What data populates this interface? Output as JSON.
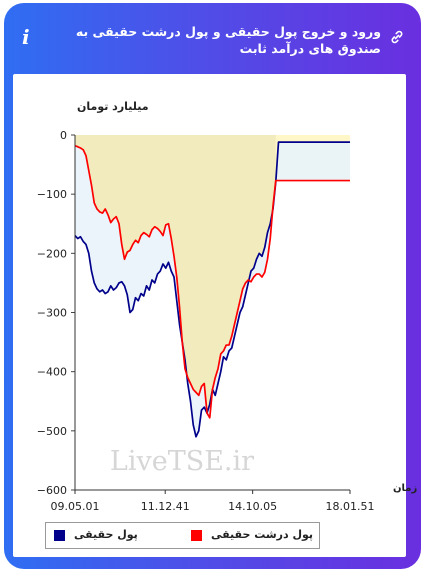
{
  "header": {
    "title": "ورود و خروج پول حقیقی و پول درشت حقیقی به صندوق های درآمد ثابت",
    "link_icon": "link-icon",
    "info_icon": "info-icon",
    "info_glyph": "i"
  },
  "watermark": "LiveTSE.ir",
  "colors": {
    "frame_start": "#2f6ef3",
    "frame_end": "#6a2fe0",
    "real_money": "#00008b",
    "big_real_money": "#ff0000",
    "fill_real": "#e9f3fa",
    "fill_big": "#f2ebbd",
    "fill_big_last": "#fff7c8"
  },
  "chart_data": {
    "type": "line",
    "ylabel": "میلیارد تومان",
    "xlabel": "زمان",
    "ylim": [
      -600,
      0
    ],
    "yticks": [
      0,
      -100,
      -200,
      -300,
      -400,
      -500,
      -600
    ],
    "ytick_labels": [
      "0",
      "−100",
      "−200",
      "−300",
      "−400",
      "−500",
      "−600"
    ],
    "xticks": [
      "09.05.01",
      "11.12.41",
      "14.10.05",
      "18.01.51"
    ],
    "xtick_positions": [
      0,
      0.328,
      0.646,
      1.0
    ],
    "legend": [
      "پول حقیقی",
      "پول درشت حقیقی"
    ],
    "series": [
      {
        "name": "پول حقیقی",
        "color": "#00008b",
        "x": [
          0,
          0.01,
          0.02,
          0.03,
          0.04,
          0.05,
          0.06,
          0.07,
          0.08,
          0.09,
          0.1,
          0.11,
          0.12,
          0.13,
          0.14,
          0.15,
          0.16,
          0.17,
          0.18,
          0.19,
          0.2,
          0.21,
          0.22,
          0.23,
          0.24,
          0.25,
          0.26,
          0.27,
          0.28,
          0.29,
          0.3,
          0.31,
          0.32,
          0.33,
          0.34,
          0.35,
          0.36,
          0.37,
          0.38,
          0.39,
          0.4,
          0.41,
          0.42,
          0.43,
          0.44,
          0.45,
          0.46,
          0.47,
          0.48,
          0.49,
          0.5,
          0.51,
          0.52,
          0.53,
          0.54,
          0.55,
          0.56,
          0.57,
          0.58,
          0.59,
          0.6,
          0.61,
          0.62,
          0.63,
          0.64,
          0.65,
          0.66,
          0.67,
          0.68,
          0.69,
          0.7,
          0.71,
          0.72,
          0.73,
          0.74,
          0.75,
          0.76,
          0.77,
          0.78,
          0.79,
          0.8,
          0.81,
          1.0
        ],
        "values": [
          -170,
          -175,
          -172,
          -180,
          -185,
          -200,
          -230,
          -250,
          -260,
          -265,
          -262,
          -268,
          -265,
          -255,
          -262,
          -258,
          -250,
          -248,
          -255,
          -270,
          -300,
          -295,
          -275,
          -280,
          -268,
          -272,
          -255,
          -262,
          -245,
          -250,
          -235,
          -230,
          -218,
          -225,
          -215,
          -230,
          -240,
          -280,
          -320,
          -350,
          -380,
          -420,
          -450,
          -490,
          -510,
          -500,
          -465,
          -460,
          -470,
          -455,
          -430,
          -440,
          -420,
          -400,
          -375,
          -380,
          -365,
          -360,
          -340,
          -320,
          -300,
          -290,
          -270,
          -250,
          -230,
          -225,
          -210,
          -200,
          -205,
          -190,
          -165,
          -150,
          -125,
          -80,
          -12,
          -12,
          -12,
          -12,
          -12,
          -12,
          -12,
          -12,
          -12
        ]
      },
      {
        "name": "پول درشت حقیقی",
        "color": "#ff0000",
        "x": [
          0,
          0.01,
          0.02,
          0.03,
          0.04,
          0.05,
          0.06,
          0.07,
          0.08,
          0.09,
          0.1,
          0.11,
          0.12,
          0.13,
          0.14,
          0.15,
          0.16,
          0.17,
          0.18,
          0.19,
          0.2,
          0.21,
          0.22,
          0.23,
          0.24,
          0.25,
          0.26,
          0.27,
          0.28,
          0.29,
          0.3,
          0.31,
          0.32,
          0.33,
          0.34,
          0.35,
          0.36,
          0.37,
          0.38,
          0.39,
          0.4,
          0.41,
          0.42,
          0.43,
          0.44,
          0.45,
          0.46,
          0.47,
          0.48,
          0.49,
          0.5,
          0.51,
          0.52,
          0.53,
          0.54,
          0.55,
          0.56,
          0.57,
          0.58,
          0.59,
          0.6,
          0.61,
          0.62,
          0.63,
          0.64,
          0.65,
          0.66,
          0.67,
          0.68,
          0.69,
          0.7,
          0.71,
          0.72,
          0.73,
          0.74,
          0.75,
          0.76,
          0.77,
          0.78,
          0.79,
          0.8,
          0.81,
          1.0
        ],
        "values": [
          -18,
          -20,
          -22,
          -25,
          -35,
          -60,
          -85,
          -115,
          -125,
          -130,
          -132,
          -125,
          -135,
          -148,
          -142,
          -138,
          -150,
          -185,
          -210,
          -198,
          -195,
          -185,
          -178,
          -182,
          -170,
          -165,
          -168,
          -172,
          -160,
          -155,
          -158,
          -163,
          -170,
          -152,
          -150,
          -175,
          -205,
          -240,
          -290,
          -350,
          -395,
          -410,
          -420,
          -430,
          -435,
          -440,
          -425,
          -420,
          -470,
          -478,
          -430,
          -410,
          -395,
          -370,
          -365,
          -355,
          -355,
          -340,
          -320,
          -300,
          -280,
          -260,
          -250,
          -245,
          -248,
          -240,
          -235,
          -235,
          -240,
          -232,
          -210,
          -175,
          -120,
          -77,
          -77,
          -77,
          -77,
          -77,
          -77,
          -77,
          -77,
          -77,
          -77
        ]
      }
    ]
  },
  "legend": {
    "real": "پول حقیقی",
    "big_real": "پول درشت حقیقی"
  }
}
